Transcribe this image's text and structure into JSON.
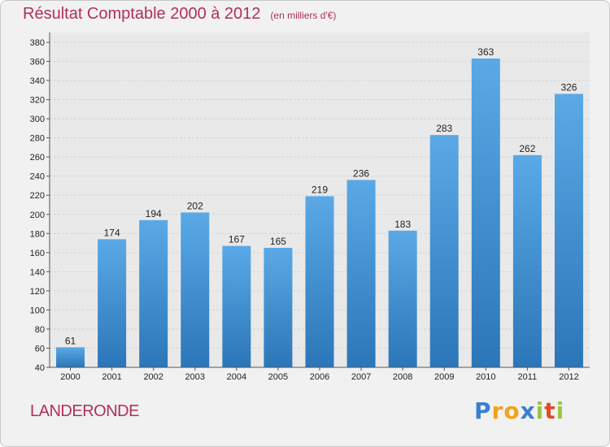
{
  "chart_data": {
    "type": "bar",
    "title": "Résultat Comptable 2000 à 2012",
    "subtitle": "(en milliers d'€)",
    "categories": [
      "2000",
      "2001",
      "2002",
      "2003",
      "2004",
      "2005",
      "2006",
      "2007",
      "2008",
      "2009",
      "2010",
      "2011",
      "2012"
    ],
    "values": [
      61,
      174,
      194,
      202,
      167,
      165,
      219,
      236,
      183,
      283,
      363,
      262,
      326
    ],
    "ylim": [
      40,
      380
    ],
    "yticks": [
      40,
      60,
      80,
      100,
      120,
      140,
      160,
      180,
      200,
      220,
      240,
      260,
      280,
      300,
      320,
      340,
      360,
      380
    ],
    "grid": true,
    "xlabel": "",
    "ylabel": ""
  },
  "commune": "LANDERONDE",
  "logo": {
    "letters": [
      "P",
      "r",
      "o",
      "x",
      "i",
      "t",
      "i"
    ],
    "colors": [
      "#3a7fd0",
      "#f2a31b",
      "#f2a31b",
      "#3a7fd0",
      "#9bc53d",
      "#e04a2a",
      "#9bc53d"
    ]
  },
  "colors": {
    "title": "#b0305a",
    "bar_top": "#5aa9e6",
    "bar_bottom": "#2b76b8",
    "grid": "#d4d4d4",
    "plot_bg": "#e9e9e9"
  }
}
